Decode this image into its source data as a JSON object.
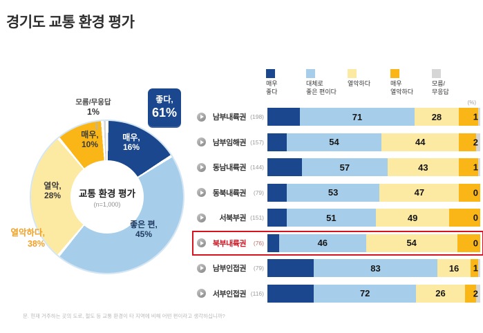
{
  "page": {
    "title": "경기도 교통 환경 평가",
    "footnote": "문. 현재 거주하는 곳의 도로, 철도 등 교통 환경이 타 지역에 비해 어떤 편이라고 생각하십니까?",
    "unit_label": "(%)"
  },
  "colors": {
    "very_good": "#1a478d",
    "good": "#a6cdea",
    "poor": "#fce9a2",
    "very_poor": "#f9b616",
    "dk": "#d6d6d6",
    "highlight_red": "#d6121f",
    "poor_total_text": "#f2a024"
  },
  "donut": {
    "center_title": "교통 환경 평가",
    "center_sub": "(n=1,000)",
    "label_very_good_1": "매우,",
    "label_very_good_2": "16%",
    "label_good_1": "좋은 편,",
    "label_good_2": "45%",
    "label_poor_1": "열악,",
    "label_poor_2": "28%",
    "label_very_poor_1": "매우,",
    "label_very_poor_2": "10%",
    "label_dk_1": "모름/무응답",
    "label_dk_2": "1%",
    "callout_good_1": "좋다,",
    "callout_good_2": "61%",
    "callout_poor_1": "열악하다,",
    "callout_poor_2": "38%"
  },
  "legend": {
    "items": [
      {
        "label": "매우\n좋다",
        "color": "#1a478d"
      },
      {
        "label": "대체로\n좋은 편이다",
        "color": "#a6cdea"
      },
      {
        "label": "열악하다",
        "color": "#fce9a2"
      },
      {
        "label": "매우\n열악하다",
        "color": "#f9b616"
      },
      {
        "label": "모름/\n무응답",
        "color": "#d6d6d6"
      }
    ]
  },
  "chart_data": [
    {
      "type": "pie",
      "title": "교통 환경 평가",
      "n": "1,000",
      "clockwise_from_top": true,
      "segments": [
        {
          "label": "매우 좋다",
          "value": 16,
          "color": "#1a478d"
        },
        {
          "label": "대체로 좋은 편이다",
          "value": 45,
          "color": "#a6cdea"
        },
        {
          "label": "열악하다",
          "value": 28,
          "color": "#fce9a2"
        },
        {
          "label": "매우 열악하다",
          "value": 10,
          "color": "#f9b616"
        },
        {
          "label": "모름/무응답",
          "value": 1,
          "color": "#d6d6d6"
        }
      ],
      "callouts": [
        {
          "label": "좋다",
          "value": 61
        },
        {
          "label": "열악하다",
          "value": 38
        }
      ]
    },
    {
      "type": "bar",
      "stacked": true,
      "horizontal": true,
      "unit": "%",
      "legend": [
        "매우 좋다",
        "대체로 좋은 편이다",
        "열악하다",
        "매우 열악하다",
        "모름/무응답"
      ],
      "rows": [
        {
          "region": "남부내륙권",
          "n": 198,
          "good_total": 71,
          "poor_total": 28,
          "dk": 1,
          "segments": [
            17,
            54,
            18,
            10,
            1
          ],
          "highlight": false
        },
        {
          "region": "남부임해권",
          "n": 157,
          "good_total": 54,
          "poor_total": 44,
          "dk": 2,
          "segments": [
            10,
            44,
            35,
            9,
            2
          ],
          "highlight": false
        },
        {
          "region": "동남내륙권",
          "n": 144,
          "good_total": 57,
          "poor_total": 43,
          "dk": 1,
          "segments": [
            18,
            39,
            32,
            10,
            1
          ],
          "highlight": false
        },
        {
          "region": "동북내륙권",
          "n": 79,
          "good_total": 53,
          "poor_total": 47,
          "dk": 0,
          "segments": [
            10,
            43,
            36,
            11,
            0
          ],
          "highlight": false
        },
        {
          "region": "서북부권",
          "n": 151,
          "good_total": 51,
          "poor_total": 49,
          "dk": 0,
          "segments": [
            10,
            41,
            33,
            16,
            0
          ],
          "highlight": false
        },
        {
          "region": "북부내륙권",
          "n": 76,
          "good_total": 46,
          "poor_total": 54,
          "dk": 0,
          "segments": [
            6,
            40,
            42,
            12,
            0
          ],
          "highlight": true
        },
        {
          "region": "남부인접권",
          "n": 79,
          "good_total": 83,
          "poor_total": 16,
          "dk": 1,
          "segments": [
            24,
            59,
            12,
            4,
            1
          ],
          "highlight": false
        },
        {
          "region": "서부인접권",
          "n": 116,
          "good_total": 72,
          "poor_total": 26,
          "dk": 2,
          "segments": [
            24,
            48,
            20,
            6,
            2
          ],
          "highlight": false
        }
      ]
    }
  ]
}
